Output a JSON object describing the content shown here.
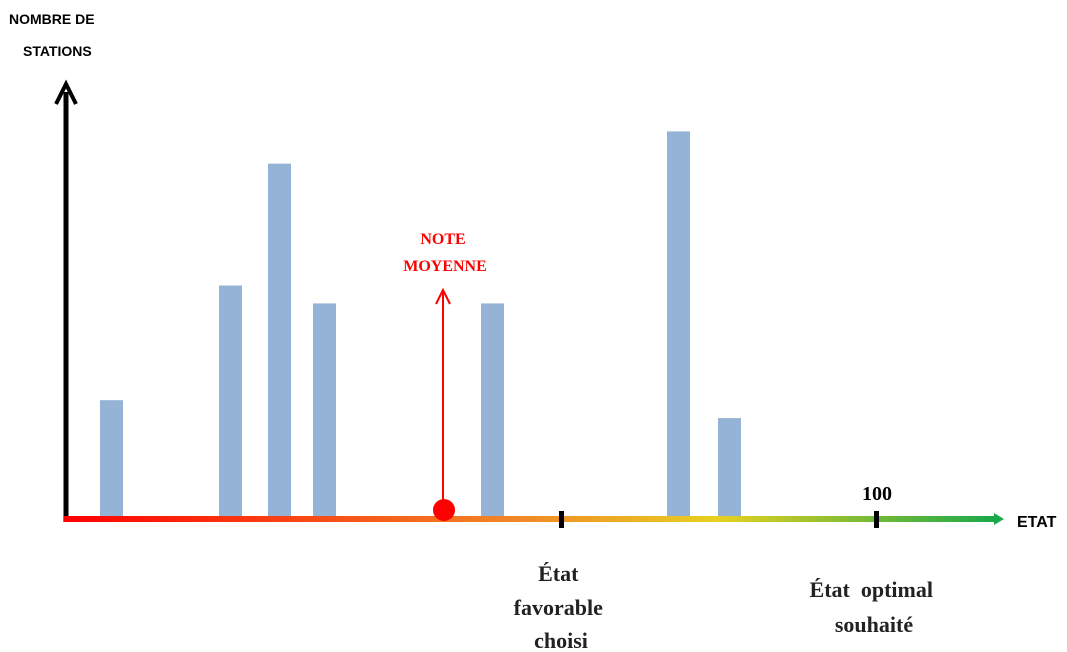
{
  "y_axis_label": [
    "NOMBRE DE",
    "STATIONS"
  ],
  "x_axis_label": "ETAT",
  "marker": {
    "label": [
      "NOTE",
      "MOYENNE"
    ]
  },
  "ticks": [
    {
      "name": "favorable",
      "lines": [
        "État",
        "favorable",
        "choisi"
      ],
      "value": ""
    },
    {
      "name": "optimal",
      "lines": [
        "État  optimal",
        "souhaité"
      ],
      "value": "100"
    }
  ],
  "chart_data": {
    "type": "bar",
    "values": [
      0.34,
      0.66,
      1.0,
      0.61,
      0.61,
      1.09,
      0.29
    ],
    "ylim": [
      0,
      1.2
    ],
    "gradient": [
      "#ff0000",
      "#f08c28",
      "#e8d020",
      "#1aa84a"
    ]
  },
  "colors": {
    "bar": "#95b3d7",
    "axis": "#000000",
    "marker": "#ff0000"
  }
}
